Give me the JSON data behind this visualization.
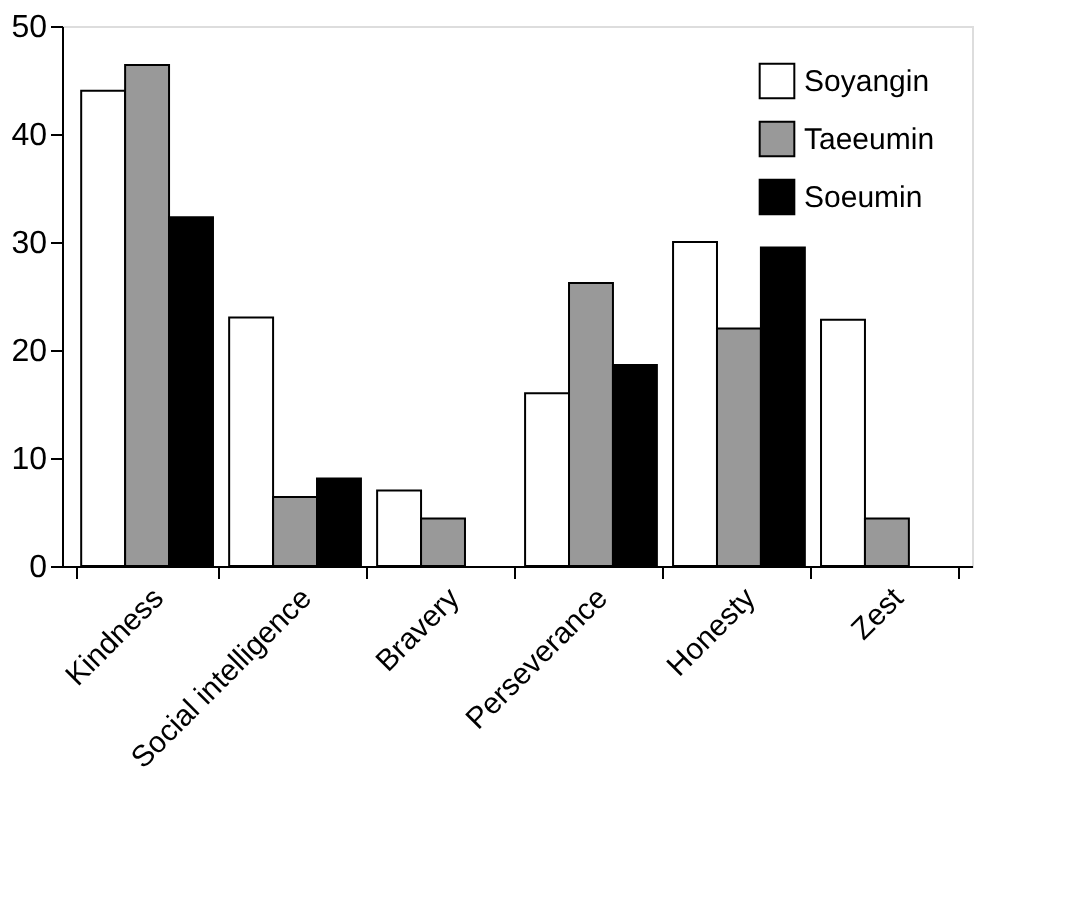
{
  "chart_data": {
    "type": "bar",
    "categories": [
      "Kindness",
      "Social intelligence",
      "Bravery",
      "Perseverance",
      "Honesty",
      "Zest"
    ],
    "series": [
      {
        "name": "Soyangin",
        "color": "#ffffff",
        "values": [
          44,
          23,
          7,
          16,
          30,
          22.8
        ]
      },
      {
        "name": "Taeeumin",
        "color": "#999999",
        "values": [
          46.4,
          6.4,
          4.4,
          26.2,
          22,
          4.4
        ]
      },
      {
        "name": "Soeumin",
        "color": "#000000",
        "values": [
          32.3,
          8.1,
          null,
          18.6,
          29.5,
          null
        ]
      }
    ],
    "ylim": [
      0,
      50
    ],
    "yticks": [
      0,
      10,
      20,
      30,
      40,
      50
    ],
    "grid": false,
    "legend": "top right"
  }
}
